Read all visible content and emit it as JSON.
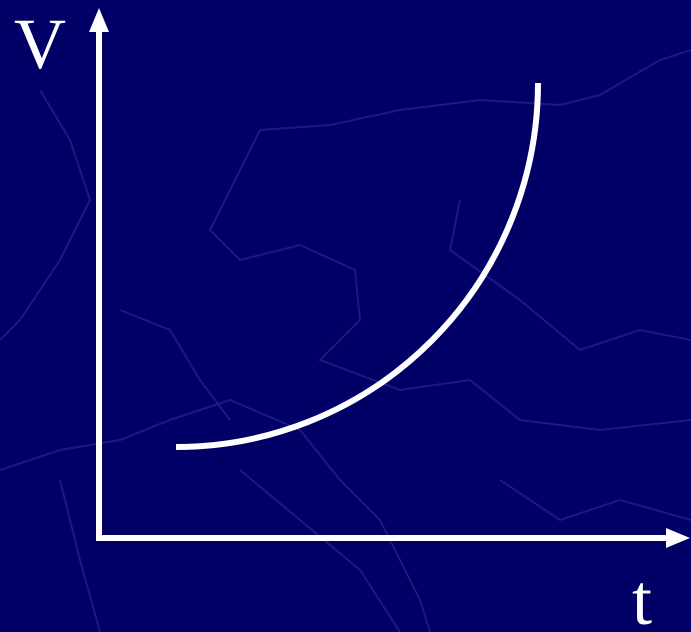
{
  "axes": {
    "y_label": "V",
    "x_label": "t"
  }
}
